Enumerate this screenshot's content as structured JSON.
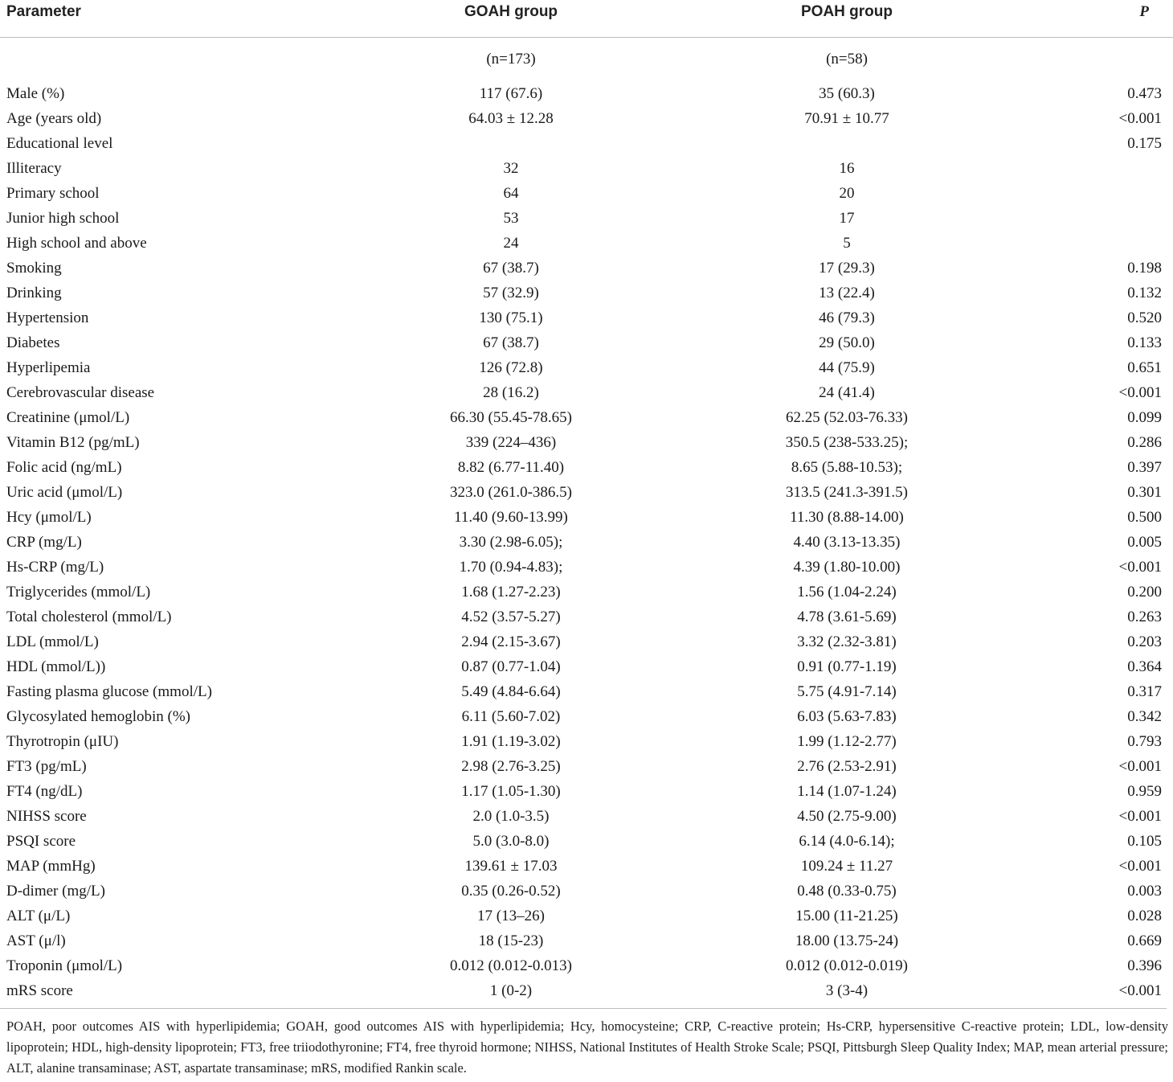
{
  "table": {
    "headers": [
      "Parameter",
      "GOAH group",
      "POAH group",
      "P"
    ],
    "rows": [
      [
        "",
        "(n=173)",
        "(n=58)",
        ""
      ],
      [
        "Male (%)",
        "117 (67.6)",
        "35 (60.3)",
        "0.473"
      ],
      [
        "Age (years old)",
        "64.03 ± 12.28",
        "70.91 ± 10.77",
        "<0.001"
      ],
      [
        "Educational level",
        "",
        "",
        "0.175"
      ],
      [
        "Illiteracy",
        "32",
        "16",
        ""
      ],
      [
        "Primary school",
        "64",
        "20",
        ""
      ],
      [
        "Junior high school",
        "53",
        "17",
        ""
      ],
      [
        "High school and above",
        "24",
        "5",
        ""
      ],
      [
        "Smoking",
        "67 (38.7)",
        "17 (29.3)",
        "0.198"
      ],
      [
        "Drinking",
        "57 (32.9)",
        "13 (22.4)",
        "0.132"
      ],
      [
        "Hypertension",
        "130 (75.1)",
        "46 (79.3)",
        "0.520"
      ],
      [
        "Diabetes",
        "67 (38.7)",
        "29 (50.0)",
        "0.133"
      ],
      [
        "Hyperlipemia",
        "126 (72.8)",
        "44 (75.9)",
        "0.651"
      ],
      [
        "Cerebrovascular disease",
        "28 (16.2)",
        "24 (41.4)",
        "<0.001"
      ],
      [
        "Creatinine (μmol/L)",
        "66.30 (55.45-78.65)",
        "62.25 (52.03-76.33)",
        "0.099"
      ],
      [
        "Vitamin B12 (pg/mL)",
        "339 (224–436)",
        "350.5 (238-533.25);",
        "0.286"
      ],
      [
        "Folic acid (ng/mL)",
        "8.82 (6.77-11.40)",
        "8.65 (5.88-10.53);",
        "0.397"
      ],
      [
        "Uric acid (μmol/L)",
        "323.0 (261.0-386.5)",
        "313.5 (241.3-391.5)",
        "0.301"
      ],
      [
        "Hcy (μmol/L)",
        "11.40 (9.60-13.99)",
        "11.30 (8.88-14.00)",
        "0.500"
      ],
      [
        "CRP (mg/L)",
        "3.30 (2.98-6.05);",
        "4.40 (3.13-13.35)",
        "0.005"
      ],
      [
        "Hs-CRP (mg/L)",
        "1.70 (0.94-4.83);",
        "4.39 (1.80-10.00)",
        "<0.001"
      ],
      [
        "Triglycerides (mmol/L)",
        "1.68 (1.27-2.23)",
        "1.56 (1.04-2.24)",
        "0.200"
      ],
      [
        "Total cholesterol (mmol/L)",
        "4.52 (3.57-5.27)",
        "4.78 (3.61-5.69)",
        "0.263"
      ],
      [
        "LDL (mmol/L)",
        "2.94 (2.15-3.67)",
        "3.32 (2.32-3.81)",
        "0.203"
      ],
      [
        "HDL (mmol/L))",
        "0.87 (0.77-1.04)",
        "0.91 (0.77-1.19)",
        "0.364"
      ],
      [
        "Fasting plasma glucose (mmol/L)",
        "5.49 (4.84-6.64)",
        "5.75 (4.91-7.14)",
        "0.317"
      ],
      [
        "Glycosylated hemoglobin (%)",
        "6.11 (5.60-7.02)",
        "6.03 (5.63-7.83)",
        "0.342"
      ],
      [
        "Thyrotropin (μIU)",
        "1.91 (1.19-3.02)",
        "1.99 (1.12-2.77)",
        "0.793"
      ],
      [
        "FT3 (pg/mL)",
        "2.98 (2.76-3.25)",
        "2.76 (2.53-2.91)",
        "<0.001"
      ],
      [
        "FT4 (ng/dL)",
        "1.17 (1.05-1.30)",
        "1.14 (1.07-1.24)",
        "0.959"
      ],
      [
        "NIHSS score",
        "2.0 (1.0-3.5)",
        "4.50 (2.75-9.00)",
        "<0.001"
      ],
      [
        "PSQI score",
        "5.0 (3.0-8.0)",
        "6.14 (4.0-6.14);",
        "0.105"
      ],
      [
        "MAP (mmHg)",
        "139.61 ± 17.03",
        "109.24 ± 11.27",
        "<0.001"
      ],
      [
        "D-dimer (mg/L)",
        "0.35 (0.26-0.52)",
        "0.48 (0.33-0.75)",
        "0.003"
      ],
      [
        "ALT (μ/L)",
        "17 (13–26)",
        "15.00 (11-21.25)",
        "0.028"
      ],
      [
        "AST (μ/l)",
        "18 (15-23)",
        "18.00 (13.75-24)",
        "0.669"
      ],
      [
        "Troponin (μmol/L)",
        "0.012 (0.012-0.013)",
        "0.012 (0.012-0.019)",
        "0.396"
      ],
      [
        "mRS score",
        "1 (0-2)",
        "3 (3-4)",
        "<0.001"
      ]
    ]
  },
  "footnote": "POAH, poor outcomes AIS with hyperlipidemia; GOAH, good outcomes AIS with hyperlipidemia; Hcy, homocysteine; CRP, C-reactive protein; Hs-CRP, hypersensitive C-reactive protein; LDL, low-density lipoprotein; HDL, high-density lipoprotein; FT3, free triiodothyronine; FT4, free thyroid hormone; NIHSS, National Institutes of Health Stroke Scale; PSQI, Pittsburgh Sleep Quality Index; MAP, mean arterial pressure; ALT, alanine transaminase; AST, aspartate transaminase; mRS, modified Rankin scale."
}
